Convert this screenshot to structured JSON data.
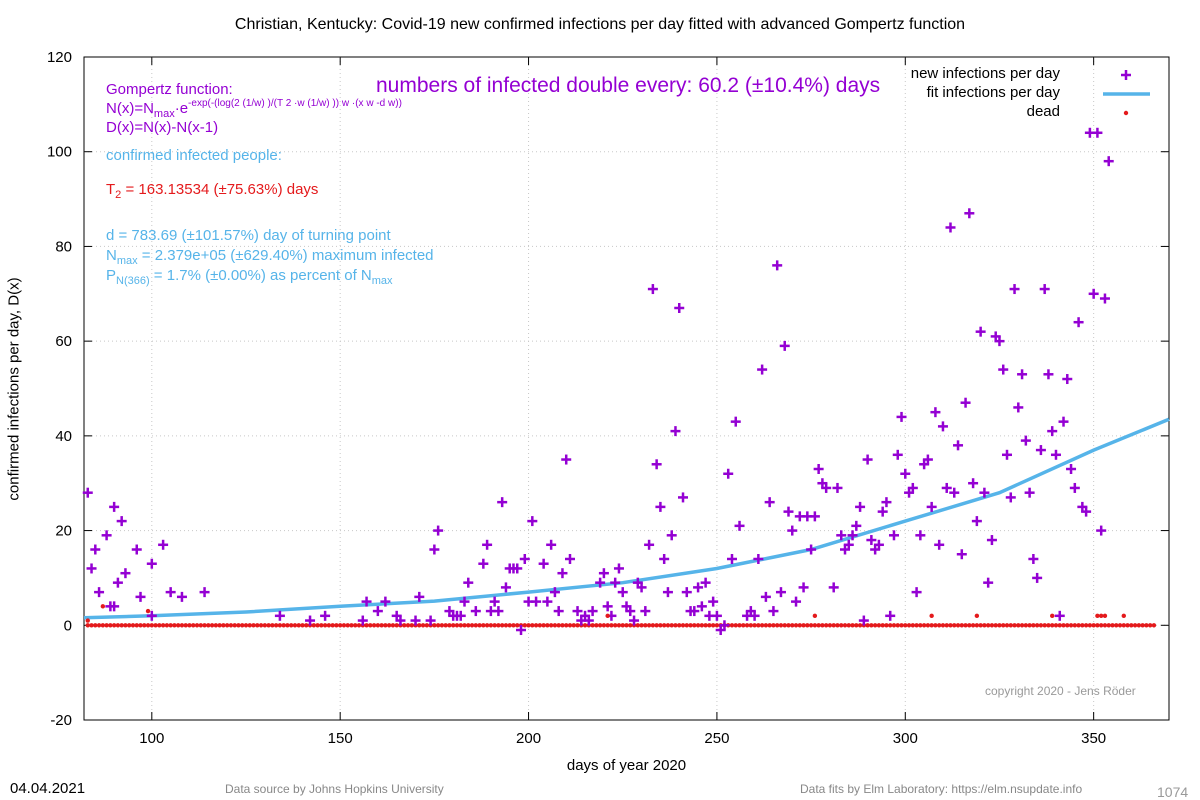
{
  "title": "Christian,  Kentucky: Covid-19 new confirmed infections per day fitted with advanced Gompertz function",
  "colors": {
    "infections": "#9400d3",
    "fit": "#56b4e9",
    "dead": "#e41a1c"
  },
  "annotations": {
    "gompertz_heading": "Gompertz function:",
    "formula_n": {
      "a": "N(x)=N",
      "b": "max",
      "c": "·e",
      "d": "-exp(-(log(2",
      "e": "(1/w)",
      "f": ")/(T",
      "g": "2",
      "h": "·w",
      "i": "(1/w)",
      "j": "))",
      "k": "w",
      "l": "·(x",
      "m": "w",
      "n": "-d",
      "o": "w",
      "p": "))"
    },
    "formula_d": "D(x)=N(x)-N(x-1)",
    "doubling": "numbers of infected double every: 60.2 (±10.4%) days",
    "confirmed_label": "confirmed infected people:",
    "t2": {
      "a": "T",
      "b": "2",
      "c": " = 163.13534 (±75.63%) days"
    },
    "turning_point": "d = 783.69 (±101.57%) day of turning point",
    "nmax": {
      "a": "N",
      "b": "max",
      "c": " = 2.379e+05 (±629.40%) maximum infected"
    },
    "pn": {
      "a": "P",
      "b": "N(366)",
      "c": " = 1.7% (±0.00%) as percent of N",
      "d": "max"
    }
  },
  "legend": [
    {
      "label": "new infections per day"
    },
    {
      "label": "fit infections per day"
    },
    {
      "label": "dead"
    }
  ],
  "footer": {
    "date": "04.04.2021",
    "source": "Data source by Johns Hopkins University",
    "fits": "Data fits by Elm Laboratory: https://elm.nsupdate.info",
    "number": "1074",
    "copyright": "copyright 2020 - Jens Röder"
  },
  "chart_data": {
    "type": "scatter",
    "title": "Christian,  Kentucky: Covid-19 new confirmed infections per day fitted with advanced Gompertz function",
    "xlabel": "days of year 2020",
    "ylabel": "confirmed infections per day, D(x)",
    "xlim": [
      82,
      370
    ],
    "ylim": [
      -20,
      120
    ],
    "xticks": [
      100,
      150,
      200,
      250,
      300,
      350
    ],
    "yticks": [
      -20,
      0,
      20,
      40,
      60,
      80,
      100,
      120
    ],
    "grid": true,
    "legend_position": "top-right",
    "series": [
      {
        "name": "new infections per day",
        "marker": "plus",
        "points": [
          [
            83,
            28
          ],
          [
            84,
            12
          ],
          [
            85,
            16
          ],
          [
            86,
            7
          ],
          [
            88,
            19
          ],
          [
            89,
            4
          ],
          [
            90,
            25
          ],
          [
            90,
            4
          ],
          [
            91,
            9
          ],
          [
            92,
            22
          ],
          [
            93,
            11
          ],
          [
            96,
            16
          ],
          [
            97,
            6
          ],
          [
            100,
            2
          ],
          [
            100,
            13
          ],
          [
            103,
            17
          ],
          [
            105,
            7
          ],
          [
            108,
            6
          ],
          [
            114,
            7
          ],
          [
            134,
            2
          ],
          [
            142,
            1
          ],
          [
            146,
            2
          ],
          [
            156,
            1
          ],
          [
            157,
            5
          ],
          [
            160,
            3
          ],
          [
            162,
            5
          ],
          [
            165,
            2
          ],
          [
            166,
            1
          ],
          [
            170,
            1
          ],
          [
            171,
            6
          ],
          [
            174,
            1
          ],
          [
            175,
            16
          ],
          [
            176,
            20
          ],
          [
            179,
            3
          ],
          [
            180,
            2
          ],
          [
            181,
            2
          ],
          [
            182,
            2
          ],
          [
            183,
            5
          ],
          [
            184,
            9
          ],
          [
            186,
            3
          ],
          [
            188,
            13
          ],
          [
            189,
            17
          ],
          [
            190,
            3
          ],
          [
            191,
            5
          ],
          [
            192,
            3
          ],
          [
            193,
            26
          ],
          [
            194,
            8
          ],
          [
            195,
            12
          ],
          [
            196,
            12
          ],
          [
            197,
            12
          ],
          [
            198,
            -1
          ],
          [
            199,
            14
          ],
          [
            200,
            5
          ],
          [
            201,
            22
          ],
          [
            202,
            5
          ],
          [
            204,
            13
          ],
          [
            205,
            5
          ],
          [
            206,
            17
          ],
          [
            207,
            7
          ],
          [
            208,
            3
          ],
          [
            209,
            11
          ],
          [
            210,
            35
          ],
          [
            211,
            14
          ],
          [
            213,
            3
          ],
          [
            214,
            1
          ],
          [
            215,
            2
          ],
          [
            216,
            1
          ],
          [
            217,
            3
          ],
          [
            219,
            9
          ],
          [
            220,
            11
          ],
          [
            221,
            4
          ],
          [
            222,
            2
          ],
          [
            223,
            9
          ],
          [
            224,
            12
          ],
          [
            225,
            7
          ],
          [
            226,
            4
          ],
          [
            227,
            3
          ],
          [
            228,
            1
          ],
          [
            229,
            9
          ],
          [
            230,
            8
          ],
          [
            231,
            3
          ],
          [
            232,
            17
          ],
          [
            233,
            71
          ],
          [
            234,
            34
          ],
          [
            235,
            25
          ],
          [
            236,
            14
          ],
          [
            237,
            7
          ],
          [
            238,
            19
          ],
          [
            239,
            41
          ],
          [
            240,
            67
          ],
          [
            241,
            27
          ],
          [
            242,
            7
          ],
          [
            243,
            3
          ],
          [
            244,
            3
          ],
          [
            245,
            8
          ],
          [
            246,
            4
          ],
          [
            247,
            9
          ],
          [
            248,
            2
          ],
          [
            249,
            5
          ],
          [
            250,
            2
          ],
          [
            251,
            -1
          ],
          [
            252,
            0
          ],
          [
            253,
            32
          ],
          [
            254,
            14
          ],
          [
            255,
            43
          ],
          [
            256,
            21
          ],
          [
            258,
            2
          ],
          [
            259,
            3
          ],
          [
            260,
            2
          ],
          [
            261,
            14
          ],
          [
            262,
            54
          ],
          [
            263,
            6
          ],
          [
            264,
            26
          ],
          [
            265,
            3
          ],
          [
            266,
            76
          ],
          [
            267,
            7
          ],
          [
            268,
            59
          ],
          [
            269,
            24
          ],
          [
            270,
            20
          ],
          [
            271,
            5
          ],
          [
            272,
            23
          ],
          [
            273,
            8
          ],
          [
            274,
            23
          ],
          [
            275,
            16
          ],
          [
            276,
            23
          ],
          [
            277,
            33
          ],
          [
            278,
            30
          ],
          [
            279,
            29
          ],
          [
            281,
            8
          ],
          [
            282,
            29
          ],
          [
            283,
            19
          ],
          [
            284,
            16
          ],
          [
            285,
            17
          ],
          [
            286,
            19
          ],
          [
            287,
            21
          ],
          [
            288,
            25
          ],
          [
            289,
            1
          ],
          [
            290,
            35
          ],
          [
            291,
            18
          ],
          [
            292,
            16
          ],
          [
            293,
            17
          ],
          [
            294,
            24
          ],
          [
            295,
            26
          ],
          [
            296,
            2
          ],
          [
            297,
            19
          ],
          [
            298,
            36
          ],
          [
            299,
            44
          ],
          [
            300,
            32
          ],
          [
            301,
            28
          ],
          [
            302,
            29
          ],
          [
            303,
            7
          ],
          [
            304,
            19
          ],
          [
            305,
            34
          ],
          [
            306,
            35
          ],
          [
            307,
            25
          ],
          [
            308,
            45
          ],
          [
            309,
            17
          ],
          [
            310,
            42
          ],
          [
            311,
            29
          ],
          [
            312,
            84
          ],
          [
            313,
            28
          ],
          [
            314,
            38
          ],
          [
            315,
            15
          ],
          [
            316,
            47
          ],
          [
            317,
            87
          ],
          [
            318,
            30
          ],
          [
            319,
            22
          ],
          [
            320,
            62
          ],
          [
            321,
            28
          ],
          [
            322,
            9
          ],
          [
            323,
            18
          ],
          [
            324,
            61
          ],
          [
            325,
            60
          ],
          [
            326,
            54
          ],
          [
            327,
            36
          ],
          [
            328,
            27
          ],
          [
            329,
            71
          ],
          [
            330,
            46
          ],
          [
            331,
            53
          ],
          [
            332,
            39
          ],
          [
            333,
            28
          ],
          [
            334,
            14
          ],
          [
            335,
            10
          ],
          [
            336,
            37
          ],
          [
            337,
            71
          ],
          [
            338,
            53
          ],
          [
            339,
            41
          ],
          [
            340,
            36
          ],
          [
            341,
            2
          ],
          [
            342,
            43
          ],
          [
            343,
            52
          ],
          [
            344,
            33
          ],
          [
            345,
            29
          ],
          [
            346,
            64
          ],
          [
            347,
            25
          ],
          [
            348,
            24
          ],
          [
            349,
            104
          ],
          [
            350,
            70
          ],
          [
            351,
            104
          ],
          [
            352,
            20
          ],
          [
            353,
            69
          ],
          [
            354,
            98
          ]
        ]
      },
      {
        "name": "fit infections per day",
        "line": true,
        "points": [
          [
            82,
            1.6
          ],
          [
            100,
            2.0
          ],
          [
            125,
            2.8
          ],
          [
            150,
            4.0
          ],
          [
            175,
            5.1
          ],
          [
            200,
            7.0
          ],
          [
            225,
            9.0
          ],
          [
            250,
            12.0
          ],
          [
            275,
            16.0
          ],
          [
            300,
            22.0
          ],
          [
            325,
            28.0
          ],
          [
            350,
            37.0
          ],
          [
            370,
            43.5
          ]
        ]
      },
      {
        "name": "dead",
        "marker": "star",
        "points": [
          [
            83,
            1
          ],
          [
            87,
            4
          ],
          [
            99,
            3
          ],
          [
            221,
            2
          ],
          [
            276,
            2
          ],
          [
            307,
            2
          ],
          [
            319,
            2
          ],
          [
            339,
            2
          ],
          [
            351,
            2
          ],
          [
            352,
            2
          ],
          [
            353,
            2
          ],
          [
            358,
            2
          ]
        ]
      }
    ]
  }
}
